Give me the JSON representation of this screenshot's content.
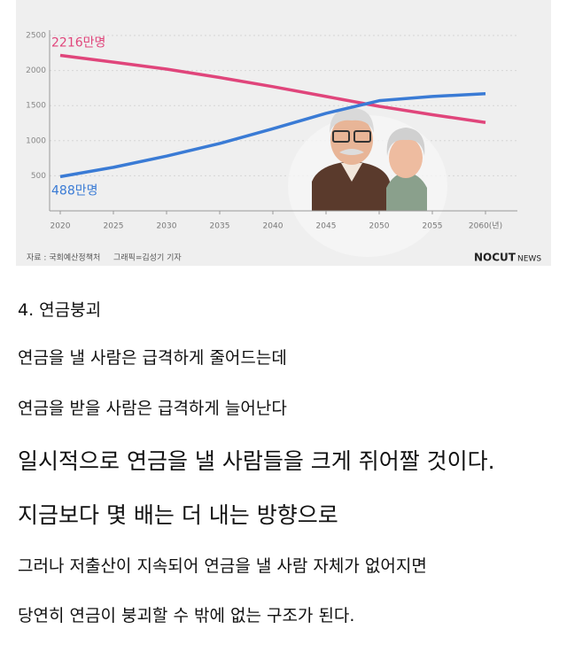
{
  "chart_data": {
    "type": "line",
    "x": [
      2020,
      2025,
      2030,
      2035,
      2040,
      2045,
      2050,
      2055,
      2060
    ],
    "series": [
      {
        "color": "#e0457b",
        "values": [
          2216,
          2120,
          2020,
          1900,
          1770,
          1630,
          1490,
          1370,
          1260
        ]
      },
      {
        "color": "#3a7bd5",
        "values": [
          488,
          620,
          780,
          960,
          1170,
          1390,
          1570,
          1630,
          1670
        ]
      }
    ],
    "annotations": [
      "2216만명",
      "488만명"
    ],
    "xlim": [
      2019,
      2063
    ],
    "ylim": [
      0,
      2500
    ],
    "xticks": [
      2020,
      2025,
      2030,
      2035,
      2040,
      2045,
      2050,
      2055,
      {
        "value": 2060,
        "label": "2060(년)"
      }
    ],
    "yticks": [
      500,
      1000,
      1500,
      2000,
      2500
    ],
    "grid": true,
    "source": "자료 : 국회예산정책처",
    "credit": "그래픽=김성기 기자",
    "logo": [
      "NOCUT",
      "NEWS"
    ]
  },
  "article": {
    "paragraphs": [
      "4. 연금붕괴",
      "연금을 낼 사람은 급격하게 줄어드는데",
      "연금을 받을 사람은 급격하게 늘어난다",
      "일시적으로 연금을 낼 사람들을 크게 쥐어짤 것이다.",
      "지금보다 몇 배는 더 내는 방향으로",
      "그러나 저출산이 지속되어 연금을 낼 사람 자체가 없어지면",
      "당연히 연금이 붕괴할 수 밖에 없는 구조가 된다."
    ]
  }
}
